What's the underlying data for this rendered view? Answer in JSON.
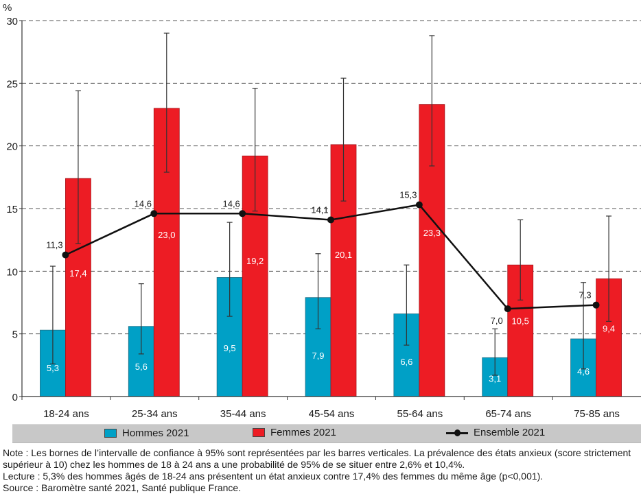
{
  "chart_data": {
    "type": "bar",
    "title": "",
    "ylabel": "%",
    "xlabel": "",
    "ylim": [
      0,
      30
    ],
    "yticks": [
      0,
      5,
      10,
      15,
      20,
      25,
      30
    ],
    "grid": "horizontal-dashed",
    "categories": [
      "18-24 ans",
      "25-34 ans",
      "35-44 ans",
      "45-54 ans",
      "55-64 ans",
      "65-74 ans",
      "75-85 ans"
    ],
    "series": [
      {
        "name": "Hommes 2021",
        "type": "bar",
        "color": "#00a0c6",
        "values": [
          5.3,
          5.6,
          9.5,
          7.9,
          6.6,
          3.1,
          4.6
        ],
        "labels": [
          "5,3",
          "5,6",
          "9,5",
          "7,9",
          "6,6",
          "3,1",
          "4,6"
        ],
        "ci_low": [
          2.6,
          3.4,
          6.4,
          5.4,
          4.1,
          1.7,
          2.2
        ],
        "ci_high": [
          10.4,
          9.0,
          13.9,
          11.4,
          10.5,
          5.4,
          9.1
        ]
      },
      {
        "name": "Femmes 2021",
        "type": "bar",
        "color": "#ed1c24",
        "values": [
          17.4,
          23.0,
          19.2,
          20.1,
          23.3,
          10.5,
          9.4
        ],
        "labels": [
          "17,4",
          "23,0",
          "19,2",
          "20,1",
          "23,3",
          "10,5",
          "9,4"
        ],
        "ci_low": [
          12.2,
          17.9,
          14.8,
          15.6,
          18.4,
          7.7,
          6.0
        ],
        "ci_high": [
          24.4,
          29.0,
          24.6,
          25.4,
          28.8,
          14.1,
          14.4
        ]
      },
      {
        "name": "Ensemble 2021",
        "type": "line",
        "color": "#111111",
        "values": [
          11.3,
          14.6,
          14.6,
          14.1,
          15.3,
          7.0,
          7.3
        ],
        "labels": [
          "11,3",
          "14,6",
          "14,6",
          "14,1",
          "15,3",
          "7,0",
          "7,3"
        ]
      }
    ],
    "legend": {
      "placement": "bottom",
      "items": [
        "Hommes 2021",
        "Femmes 2021",
        "Ensemble 2021"
      ]
    }
  },
  "notes": {
    "note": "Note : Les bornes de l’intervalle de confiance à 95% sont représentées par les barres verticales. La prévalence des états anxieux (score strictement supérieur à 10) chez les hommes de 18 à 24 ans a une probabilité de 95% de se situer entre 2,6% et 10,4%.",
    "lecture": "Lecture : 5,3% des hommes âgés de 18-24 ans présentent un état anxieux contre 17,4% des femmes du même âge (p<0,001).",
    "source": "Source : Baromètre santé 2021, Santé publique France."
  }
}
